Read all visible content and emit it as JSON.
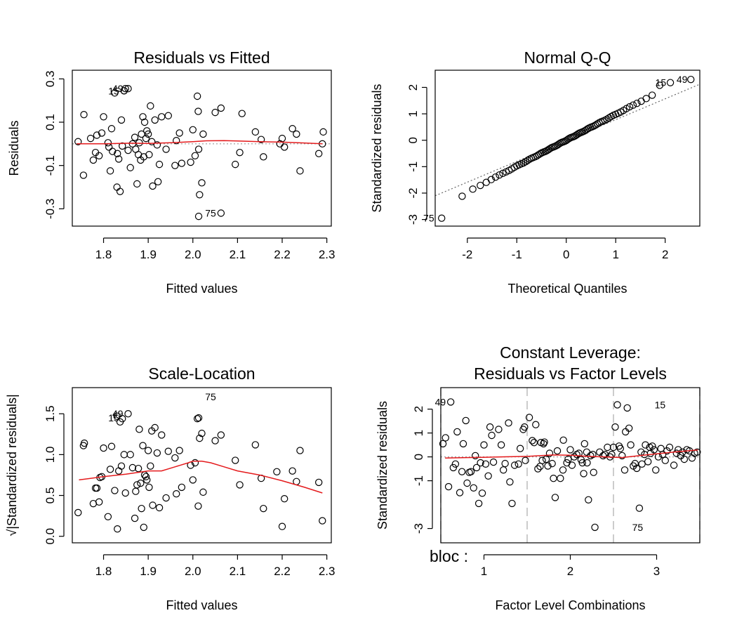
{
  "chart_data": [
    {
      "type": "scatter",
      "title": "Residuals vs Fitted",
      "xlabel": "Fitted values",
      "ylabel": "Residuals",
      "xlim": [
        1.73,
        2.31
      ],
      "ylim": [
        -0.38,
        0.34
      ],
      "xticks": [
        1.8,
        1.9,
        2.0,
        2.1,
        2.2,
        2.3
      ],
      "xtick_labels": [
        "1.8",
        "1.9",
        "2.0",
        "2.1",
        "2.2",
        "2.3"
      ],
      "yticks": [
        -0.3,
        -0.1,
        0.1,
        0.3
      ],
      "ytick_labels": [
        "-0.3",
        "-0.1",
        "0.1",
        "0.3"
      ],
      "reference_line": {
        "y": 0,
        "style": "dotted",
        "color": "#999999"
      },
      "smooth_color": "#e41a1c",
      "smooth_x": [
        1.74,
        1.8,
        1.86,
        1.9,
        1.95,
        2.0,
        2.03,
        2.07,
        2.1,
        2.15,
        2.2,
        2.25,
        2.29
      ],
      "smooth_y": [
        0.0,
        0.0,
        0.003,
        0.002,
        0.005,
        0.01,
        0.014,
        0.015,
        0.013,
        0.01,
        0.008,
        0.004,
        0.0
      ],
      "x": [
        1.743,
        1.756,
        1.755,
        1.771,
        1.777,
        1.782,
        1.785,
        1.79,
        1.796,
        1.8,
        1.81,
        1.812,
        1.815,
        1.818,
        1.82,
        1.825,
        1.83,
        1.831,
        1.834,
        1.837,
        1.84,
        1.842,
        1.846,
        1.849,
        1.855,
        1.86,
        1.865,
        1.87,
        1.872,
        1.875,
        1.878,
        1.88,
        1.883,
        1.885,
        1.888,
        1.89,
        1.892,
        1.895,
        1.897,
        1.9,
        1.902,
        1.905,
        1.908,
        1.91,
        1.915,
        1.92,
        1.922,
        1.925,
        1.93,
        1.94,
        1.945,
        1.96,
        1.963,
        1.97,
        1.975,
        1.995,
        2.0,
        2.005,
        2.01,
        2.012,
        2.013,
        2.015,
        2.02,
        2.023,
        2.05,
        2.063,
        2.095,
        2.105,
        2.11,
        2.14,
        2.153,
        2.158,
        2.195,
        2.2,
        2.205,
        2.223,
        2.232,
        2.24,
        2.282,
        2.29,
        2.292,
        2.013,
        2.063,
        1.846,
        1.855
      ],
      "y": [
        0.01,
        0.135,
        -0.145,
        0.025,
        -0.075,
        -0.04,
        0.04,
        -0.055,
        0.05,
        0.125,
        0.005,
        -0.015,
        -0.125,
        0.07,
        -0.035,
        0.235,
        -0.2,
        -0.045,
        -0.07,
        -0.22,
        0.11,
        -0.01,
        0.245,
        0.255,
        -0.03,
        -0.11,
        0.0,
        0.03,
        -0.025,
        -0.185,
        -0.05,
        0.005,
        -0.075,
        0.045,
        0.125,
        -0.06,
        0.1,
        0.025,
        0.06,
        0.045,
        -0.05,
        0.175,
        0.01,
        -0.195,
        0.11,
        -0.005,
        -0.175,
        -0.095,
        0.125,
        -0.025,
        0.13,
        -0.1,
        0.015,
        0.05,
        -0.09,
        -0.085,
        0.065,
        -0.055,
        0.22,
        0.15,
        -0.025,
        -0.235,
        -0.18,
        0.045,
        0.145,
        0.165,
        -0.095,
        -0.04,
        0.14,
        0.055,
        0.02,
        -0.06,
        0.0,
        0.025,
        -0.015,
        0.07,
        0.045,
        -0.125,
        -0.045,
        0.0,
        0.055,
        -0.335,
        -0.32,
        0.245,
        0.255
      ],
      "labels": [
        {
          "x": 1.846,
          "y": 0.245,
          "text": "15"
        },
        {
          "x": 1.855,
          "y": 0.255,
          "text": "49"
        },
        {
          "x": 2.063,
          "y": -0.32,
          "text": "75"
        }
      ]
    },
    {
      "type": "scatter",
      "title": "Normal Q-Q",
      "xlabel": "Theoretical Quantiles",
      "ylabel": "Standardized residuals",
      "xlim": [
        -2.65,
        2.7
      ],
      "ylim": [
        -3.25,
        2.65
      ],
      "xticks": [
        -2,
        -1,
        0,
        1,
        2
      ],
      "xtick_labels": [
        "-2",
        "-1",
        "0",
        "1",
        "2"
      ],
      "yticks": [
        -3,
        -2,
        -1,
        0,
        1,
        2
      ],
      "ytick_labels": [
        "-3",
        "-2",
        "-1",
        "0",
        "1",
        "2"
      ],
      "reference_line": {
        "x": [
          -2.65,
          2.7
        ],
        "y": [
          -2.1,
          2.12
        ],
        "style": "dotted",
        "color": "#666666"
      },
      "points_description": "sorted standardized residuals vs theoretical normal quantiles (85 points)",
      "labels": [
        {
          "x": -2.57,
          "y": -2.95,
          "text": "75"
        },
        {
          "x": 2.12,
          "y": 2.18,
          "text": "15"
        },
        {
          "x": 2.55,
          "y": 2.3,
          "text": "49"
        }
      ]
    },
    {
      "type": "scatter",
      "title": "Scale-Location",
      "xlabel": "Fitted values",
      "ylabel": "√|Standardized residuals|",
      "xlim": [
        1.73,
        2.31
      ],
      "ylim": [
        -0.08,
        1.82
      ],
      "xticks": [
        1.8,
        1.9,
        2.0,
        2.1,
        2.2,
        2.3
      ],
      "xtick_labels": [
        "1.8",
        "1.9",
        "2.0",
        "2.1",
        "2.2",
        "2.3"
      ],
      "yticks": [
        0.0,
        0.5,
        1.0,
        1.5
      ],
      "ytick_labels": [
        "0.0",
        "0.5",
        "1.0",
        "1.5"
      ],
      "smooth_color": "#e41a1c",
      "smooth_x": [
        1.745,
        1.8,
        1.85,
        1.9,
        1.93,
        1.96,
        1.99,
        2.0,
        2.02,
        2.04,
        2.07,
        2.1,
        2.15,
        2.2,
        2.25,
        2.29
      ],
      "smooth_y": [
        0.69,
        0.73,
        0.76,
        0.8,
        0.8,
        0.85,
        0.9,
        0.92,
        0.92,
        0.9,
        0.85,
        0.8,
        0.75,
        0.68,
        0.6,
        0.53
      ],
      "x": [
        1.743,
        1.755,
        1.757,
        1.777,
        1.782,
        1.785,
        1.79,
        1.792,
        1.796,
        1.8,
        1.81,
        1.815,
        1.818,
        1.825,
        1.83,
        1.831,
        1.834,
        1.837,
        1.84,
        1.842,
        1.846,
        1.849,
        1.855,
        1.86,
        1.865,
        1.87,
        1.872,
        1.875,
        1.878,
        1.88,
        1.883,
        1.885,
        1.888,
        1.89,
        1.892,
        1.895,
        1.897,
        1.9,
        1.902,
        1.905,
        1.908,
        1.91,
        1.915,
        1.92,
        1.925,
        1.93,
        1.94,
        1.945,
        1.96,
        1.963,
        1.97,
        1.975,
        1.995,
        2.0,
        2.005,
        2.01,
        2.012,
        2.013,
        2.015,
        2.02,
        2.023,
        2.05,
        2.063,
        2.095,
        2.105,
        2.14,
        2.153,
        2.158,
        2.188,
        2.2,
        2.205,
        2.223,
        2.232,
        2.24,
        2.282,
        2.29
      ],
      "y": [
        0.29,
        1.11,
        1.14,
        0.4,
        0.59,
        0.59,
        0.42,
        0.72,
        0.73,
        1.08,
        0.24,
        0.82,
        1.1,
        0.56,
        1.47,
        0.09,
        0.8,
        1.4,
        0.86,
        1.44,
        1.0,
        0.53,
        1.5,
        1.0,
        0.84,
        0.22,
        0.55,
        0.63,
        0.83,
        1.31,
        0.65,
        0.34,
        1.11,
        0.11,
        0.75,
        0.73,
        0.69,
        1.05,
        0.6,
        0.86,
        1.29,
        0.38,
        1.33,
        1.02,
        0.35,
        1.24,
        0.47,
        1.04,
        0.96,
        0.52,
        1.05,
        0.6,
        0.87,
        0.69,
        0.9,
        1.44,
        0.37,
        1.45,
        1.2,
        1.26,
        0.54,
        1.17,
        1.24,
        0.93,
        0.63,
        1.12,
        0.71,
        0.34,
        0.79,
        0.12,
        0.46,
        0.8,
        0.67,
        1.05,
        0.66,
        0.19
      ],
      "labels": [
        {
          "x": 1.846,
          "y": 1.45,
          "text": "15"
        },
        {
          "x": 1.855,
          "y": 1.5,
          "text": "49"
        },
        {
          "x": 2.063,
          "y": 1.71,
          "text": "75"
        }
      ]
    },
    {
      "type": "scatter",
      "title": "Constant Leverage:",
      "subtitle": "Residuals vs Factor Levels",
      "xlabel": "Factor Level Combinations",
      "ylabel": "Standardized residuals",
      "factor_label": "bloc :",
      "xlim": [
        0.5,
        3.5
      ],
      "ylim": [
        -3.6,
        2.9
      ],
      "xticks": [
        1,
        2,
        3
      ],
      "xtick_labels": [
        "1",
        "2",
        "3"
      ],
      "yticks": [
        -3,
        -1,
        0,
        1,
        2
      ],
      "ytick_labels": [
        "-3",
        "-1",
        "0",
        "1",
        "2"
      ],
      "level_boundaries": [
        0.5,
        1.5,
        2.5,
        3.5
      ],
      "reference_line": {
        "y": 0,
        "style": "dotted",
        "color": "#999999"
      },
      "smooth_color": "#e41a1c",
      "smooth_x": [
        0.55,
        0.8,
        1.0,
        1.2,
        1.5,
        1.8,
        2.0,
        2.2,
        2.4,
        2.6,
        2.8,
        3.0,
        3.2,
        3.48
      ],
      "smooth_y": [
        -0.05,
        -0.03,
        -0.02,
        0.0,
        0.02,
        0.08,
        0.07,
        0.02,
        0.0,
        -0.03,
        0.05,
        0.13,
        0.2,
        0.29
      ],
      "x": [
        0.525,
        0.555,
        0.59,
        0.615,
        0.645,
        0.67,
        0.69,
        0.72,
        0.745,
        0.76,
        0.79,
        0.805,
        0.83,
        0.85,
        0.88,
        0.9,
        0.915,
        0.94,
        0.96,
        0.98,
        1.0,
        1.02,
        1.05,
        1.07,
        1.09,
        1.11,
        1.17,
        1.2,
        1.225,
        1.245,
        1.285,
        1.3,
        1.325,
        1.355,
        1.4,
        1.42,
        1.455,
        1.47,
        1.48,
        1.525,
        1.56,
        1.58,
        1.6,
        1.625,
        1.65,
        1.66,
        1.675,
        1.69,
        1.7,
        1.72,
        1.74,
        1.76,
        1.79,
        1.805,
        1.825,
        1.85,
        1.885,
        1.915,
        1.92,
        1.96,
        1.975,
        2.0,
        2.02,
        2.045,
        2.075,
        2.1,
        2.125,
        2.14,
        2.155,
        2.165,
        2.19,
        2.195,
        2.21,
        2.235,
        2.26,
        2.27,
        2.285,
        2.34,
        2.38,
        2.4,
        2.43,
        2.46,
        2.48,
        2.5,
        2.52,
        2.545,
        2.565,
        2.58,
        2.6,
        2.63,
        2.64,
        2.66,
        2.68,
        2.7,
        2.73,
        2.75,
        2.77,
        2.8,
        2.82,
        2.83,
        2.86,
        2.87,
        2.9,
        2.92,
        2.93,
        2.95,
        2.97,
        2.99,
        3.02,
        3.05,
        3.07,
        3.1,
        3.12,
        3.15,
        3.2,
        3.23,
        3.25,
        3.28,
        3.3,
        3.32,
        3.35,
        3.38,
        3.41,
        3.44,
        3.47
      ],
      "y": [
        0.55,
        0.8,
        -1.25,
        2.3,
        -0.45,
        -0.3,
        1.05,
        -1.5,
        -0.62,
        0.55,
        1.52,
        -1.1,
        -0.65,
        -0.62,
        -1.3,
        0.05,
        -0.45,
        -1.95,
        -0.25,
        -1.52,
        0.5,
        -0.3,
        -0.8,
        1.25,
        0.9,
        -0.22,
        1.15,
        0.5,
        -0.55,
        -0.28,
        1.42,
        -1.05,
        -1.95,
        -0.35,
        -0.3,
        0.35,
        1.15,
        1.25,
        -0.15,
        1.65,
        0.68,
        0.6,
        1.35,
        -0.5,
        -0.4,
        0.6,
        -0.15,
        0.55,
        0.62,
        -0.1,
        -0.38,
        0.15,
        -0.28,
        -0.9,
        -1.7,
        0.25,
        -0.9,
        -0.55,
        0.7,
        -0.25,
        -0.1,
        0.3,
        -0.35,
        0.0,
        0.1,
        0.15,
        -0.12,
        -0.25,
        -0.7,
        0.55,
        0.2,
        -0.25,
        -1.8,
        0.05,
        0.1,
        -0.65,
        -2.95,
        0.2,
        0.05,
        0.1,
        0.4,
        0.0,
        0.1,
        0.4,
        1.25,
        2.18,
        0.45,
        0.35,
        0.05,
        -0.55,
        1.05,
        2.05,
        1.2,
        0.5,
        -0.38,
        -0.28,
        -0.48,
        -2.15,
        0.2,
        -0.3,
        0.1,
        0.5,
        -0.2,
        0.4,
        0.15,
        0.45,
        0.3,
        -0.55,
        0.0,
        0.35,
        0.1,
        -0.15,
        0.25,
        0.4,
        -0.35,
        0.15,
        0.3,
        0.05,
        0.2,
        -0.1,
        0.3,
        0.25,
        -0.05,
        0.15,
        0.2
      ],
      "labels": [
        {
          "x": 0.615,
          "y": 2.3,
          "text": "49"
        },
        {
          "x": 3.16,
          "y": 2.18,
          "text": "15"
        },
        {
          "x": 2.9,
          "y": -2.95,
          "text": "75"
        }
      ]
    }
  ]
}
